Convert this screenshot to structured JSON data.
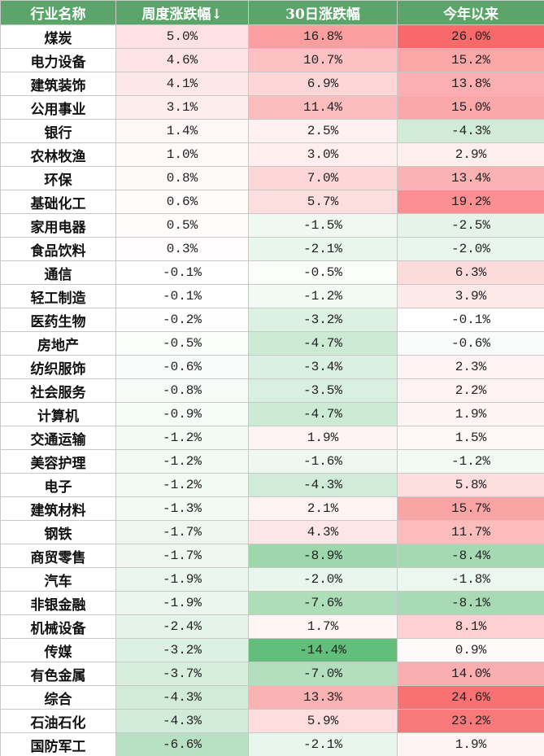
{
  "table": {
    "header": [
      "行业名称",
      "周度涨跌幅↓",
      "30日涨跌幅",
      "今年以来"
    ],
    "rows": [
      [
        "煤炭",
        "5.0%",
        "16.8%",
        "26.0%"
      ],
      [
        "电力设备",
        "4.6%",
        "10.7%",
        "15.2%"
      ],
      [
        "建筑装饰",
        "4.1%",
        "6.9%",
        "13.8%"
      ],
      [
        "公用事业",
        "3.1%",
        "11.4%",
        "15.0%"
      ],
      [
        "银行",
        "1.4%",
        "2.5%",
        "-4.3%"
      ],
      [
        "农林牧渔",
        "1.0%",
        "3.0%",
        "2.9%"
      ],
      [
        "环保",
        "0.8%",
        "7.0%",
        "13.4%"
      ],
      [
        "基础化工",
        "0.6%",
        "5.7%",
        "19.2%"
      ],
      [
        "家用电器",
        "0.5%",
        "-1.5%",
        "-2.5%"
      ],
      [
        "食品饮料",
        "0.3%",
        "-2.1%",
        "-2.0%"
      ],
      [
        "通信",
        "-0.1%",
        "-0.5%",
        "6.3%"
      ],
      [
        "轻工制造",
        "-0.1%",
        "-1.2%",
        "3.9%"
      ],
      [
        "医药生物",
        "-0.2%",
        "-3.2%",
        "-0.1%"
      ],
      [
        "房地产",
        "-0.5%",
        "-4.7%",
        "-0.6%"
      ],
      [
        "纺织服饰",
        "-0.6%",
        "-3.4%",
        "2.3%"
      ],
      [
        "社会服务",
        "-0.8%",
        "-3.5%",
        "2.2%"
      ],
      [
        "计算机",
        "-0.9%",
        "-4.7%",
        "1.9%"
      ],
      [
        "交通运输",
        "-1.2%",
        "1.9%",
        "1.5%"
      ],
      [
        "美容护理",
        "-1.2%",
        "-1.6%",
        "-1.2%"
      ],
      [
        "电子",
        "-1.2%",
        "-4.3%",
        "5.8%"
      ],
      [
        "建筑材料",
        "-1.3%",
        "2.1%",
        "15.7%"
      ],
      [
        "钢铁",
        "-1.7%",
        "4.3%",
        "11.7%"
      ],
      [
        "商贸零售",
        "-1.7%",
        "-8.9%",
        "-8.4%"
      ],
      [
        "汽车",
        "-1.9%",
        "-2.0%",
        "-1.8%"
      ],
      [
        "非银金融",
        "-1.9%",
        "-7.6%",
        "-8.1%"
      ],
      [
        "机械设备",
        "-2.4%",
        "1.7%",
        "8.1%"
      ],
      [
        "传媒",
        "-3.2%",
        "-14.4%",
        "0.9%"
      ],
      [
        "有色金属",
        "-3.7%",
        "-7.0%",
        "14.0%"
      ],
      [
        "综合",
        "-4.3%",
        "13.3%",
        "24.6%"
      ],
      [
        "石油石化",
        "-4.3%",
        "5.9%",
        "23.2%"
      ],
      [
        "国防军工",
        "-6.6%",
        "-2.1%",
        "1.9%"
      ]
    ]
  }
}
